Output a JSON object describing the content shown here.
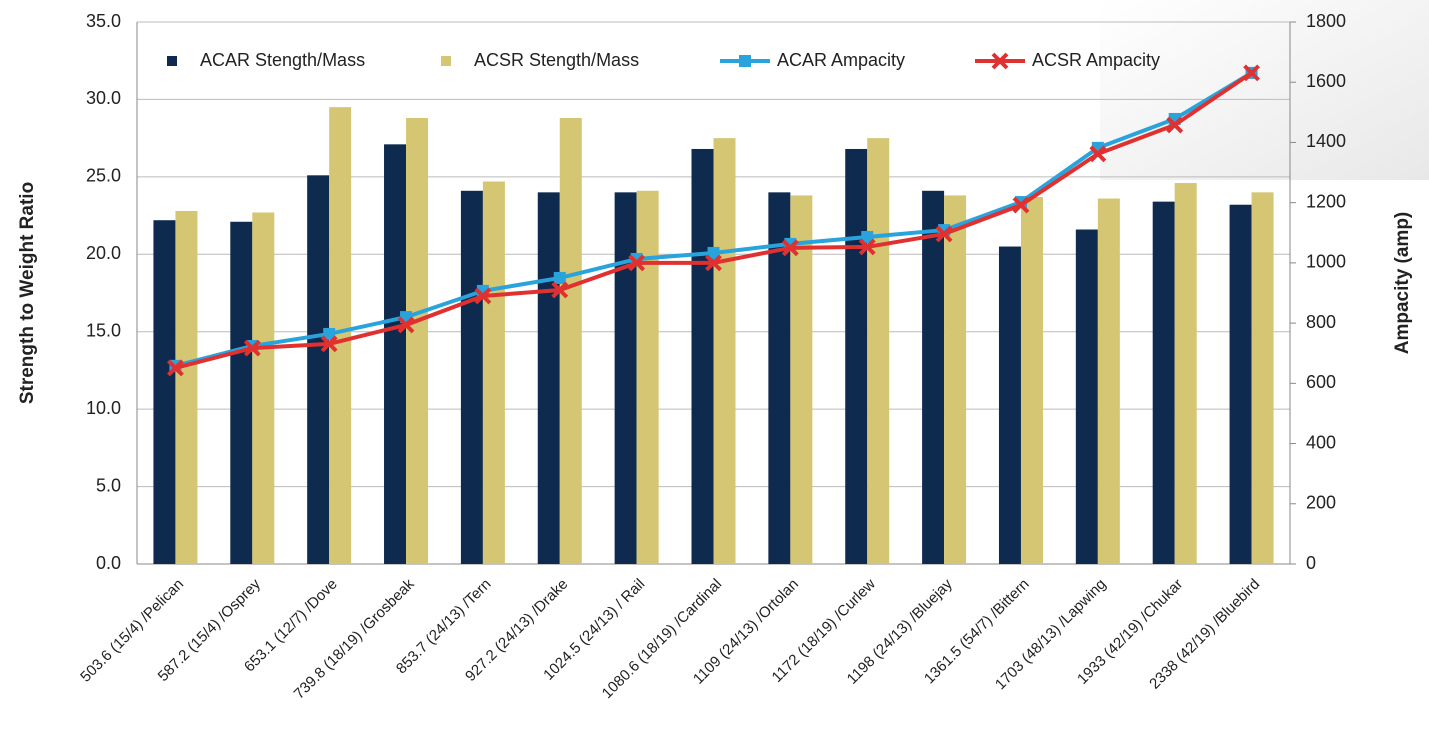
{
  "chart_data": {
    "type": "bar",
    "categories": [
      "503.6 (15/4) /Pelican",
      "587.2 (15/4) /Osprey",
      "653.1 (12/7) /Dove",
      "739.8 (18/19) /Grosbeak",
      "853.7 (24/13) /Tern",
      "927.2 (24/13) /Drake",
      "1024.5 (24/13) / Rail",
      "1080.6 (18/19) /Cardinal",
      "1109 (24/13) /Ortolan",
      "1172 (18/19) /Curlew",
      "1198 (24/13) /Bluejay",
      "1361.5 (54/7) /Bittern",
      "1703 (48/13) /Lapwing",
      "1933 (42/19) /Chukar",
      "2338 (42/19) /Bluebird"
    ],
    "series": [
      {
        "name": "ACAR Stength/Mass",
        "type": "bar",
        "color": "#0f2a4f",
        "values": [
          22.2,
          22.1,
          25.1,
          27.1,
          24.1,
          24.0,
          24.0,
          26.8,
          24.0,
          26.8,
          24.1,
          20.5,
          21.6,
          23.4,
          23.2
        ]
      },
      {
        "name": "ACSR Stength/Mass",
        "type": "bar",
        "color": "#d4c672",
        "values": [
          22.8,
          22.7,
          29.5,
          28.8,
          24.7,
          28.8,
          24.1,
          27.5,
          23.8,
          27.5,
          23.8,
          23.7,
          23.6,
          24.6,
          24.0
        ]
      },
      {
        "name": "ACAR Ampacity",
        "type": "line",
        "axis": "y2",
        "marker": "square",
        "color": "#29a3dc",
        "values": [
          658,
          724,
          764,
          820,
          907,
          950,
          1013,
          1033,
          1063,
          1086,
          1109,
          1202,
          1382,
          1478,
          1631
        ]
      },
      {
        "name": "ACSR Ampacity",
        "type": "line",
        "axis": "y2",
        "marker": "x",
        "color": "#e03030",
        "values": [
          651,
          717,
          731,
          794,
          890,
          910,
          1000,
          1000,
          1050,
          1053,
          1096,
          1192,
          1362,
          1458,
          1631
        ]
      }
    ],
    "ylabel": "Strength to Weight Ratio",
    "y2label": "Ampacity (amp)",
    "ylim": [
      0,
      35
    ],
    "yticks": [
      {
        "value": 0,
        "label": "0.0"
      },
      {
        "value": 5,
        "label": "5.0"
      },
      {
        "value": 10,
        "label": "10.0"
      },
      {
        "value": 15,
        "label": "15.0"
      },
      {
        "value": 20,
        "label": "20.0"
      },
      {
        "value": 25,
        "label": "25.0"
      },
      {
        "value": 30,
        "label": "30.0"
      },
      {
        "value": 35,
        "label": "35.0"
      }
    ],
    "y2lim": [
      0,
      1800
    ],
    "y2ticks": [
      0,
      200,
      400,
      600,
      800,
      1000,
      1200,
      1400,
      1600,
      1800
    ],
    "grid": true
  }
}
